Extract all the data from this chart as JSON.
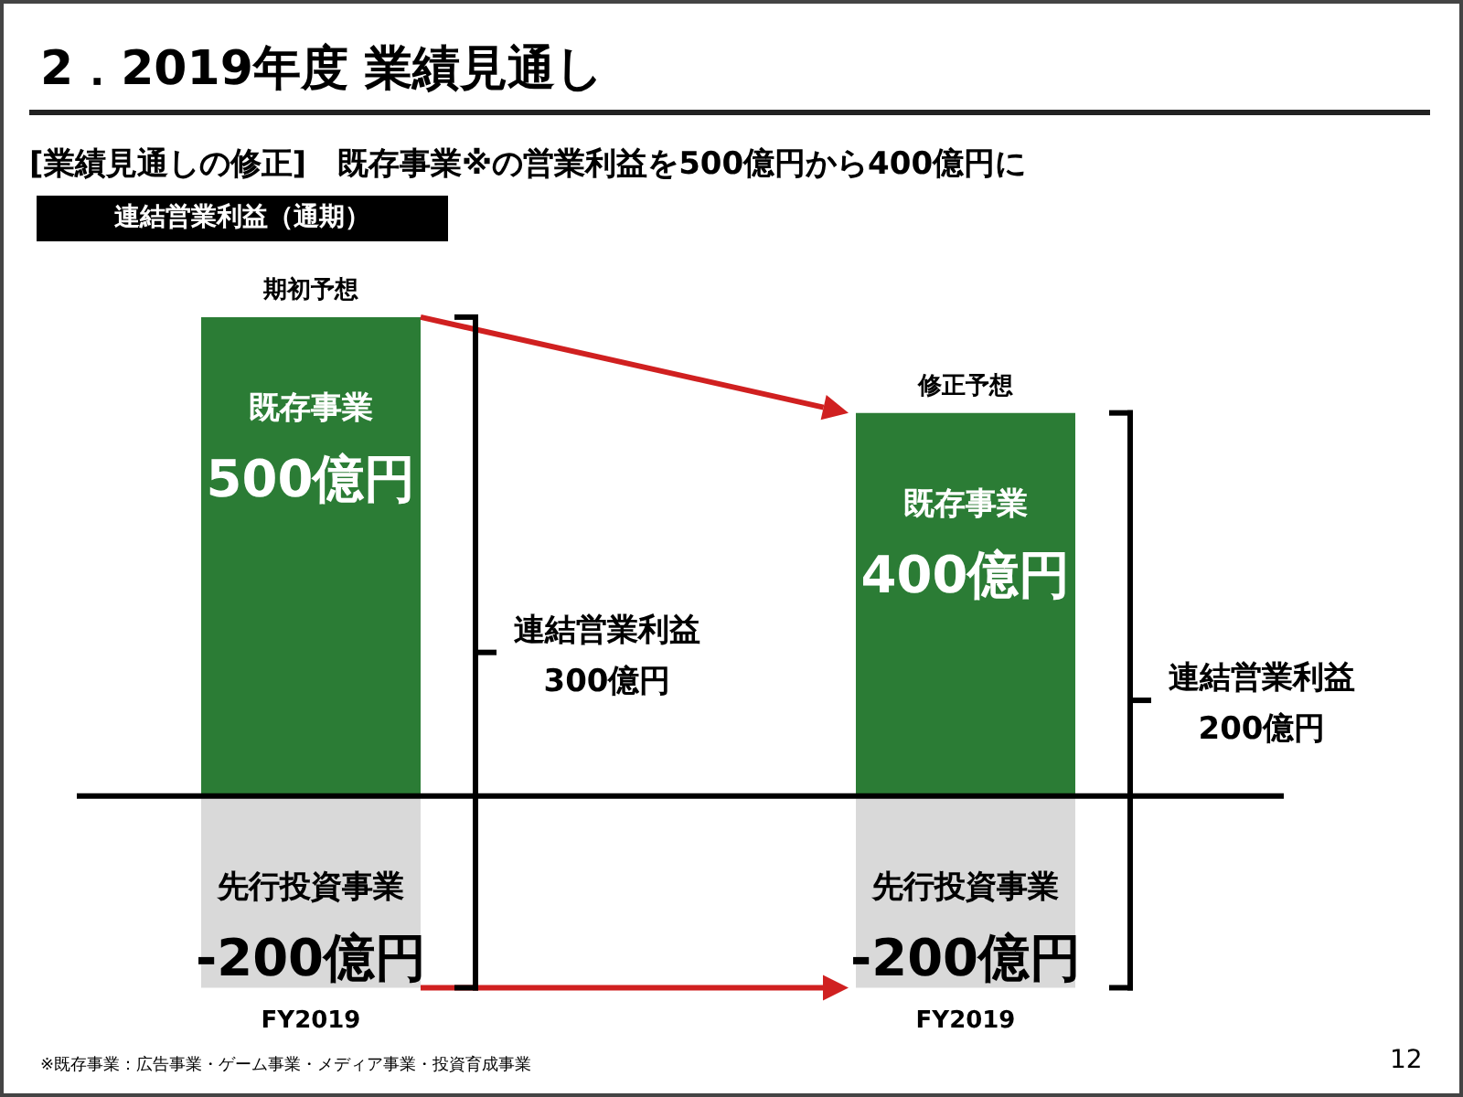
{
  "chart_data": {
    "type": "bar",
    "stacked": true,
    "title": "2．2019年度 業績見通し",
    "subtitle": "[業績見通しの修正]　既存事業※の営業利益を500億円から400億円に",
    "categories": [
      "FY2019",
      "FY2019"
    ],
    "series": [
      {
        "name": "既存事業",
        "color": "#2b7c35",
        "values": [
          500,
          400
        ],
        "value_labels": [
          "500億円",
          "400億円"
        ]
      },
      {
        "name": "先行投資事業",
        "color": "#d9d9d9",
        "values": [
          -200,
          -200
        ],
        "value_labels": [
          "-200億円",
          "-200億円"
        ]
      }
    ],
    "annotations": [
      "期初予想",
      "修正予想",
      "連結営業利益 300億円",
      "連結営業利益 200億円",
      "連結営業利益（通期）",
      "※既存事業：広告事業・ゲーム事業・メディア事業・投資育成事業",
      "12"
    ]
  }
}
